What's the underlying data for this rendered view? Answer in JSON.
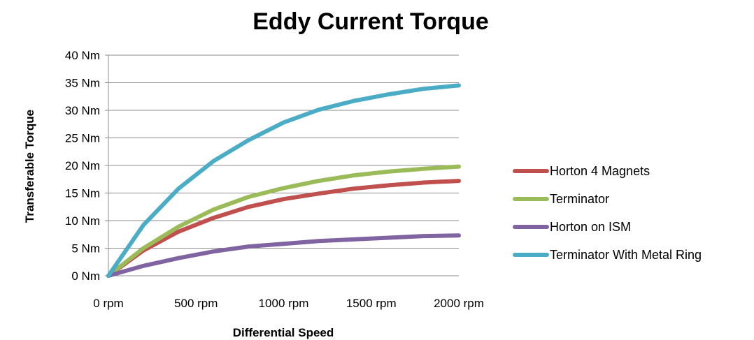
{
  "chart_data": {
    "type": "line",
    "title": "Eddy Current Torque",
    "xlabel": "Differential Speed",
    "ylabel": "Transferable Torque",
    "x_ticks": [
      "0 rpm",
      "500 rpm",
      "1000 rpm",
      "1500 rpm",
      "2000 rpm"
    ],
    "y_ticks": [
      "0 Nm",
      "5 Nm",
      "10 Nm",
      "15 Nm",
      "20 Nm",
      "25 Nm",
      "30 Nm",
      "35 Nm",
      "40 Nm"
    ],
    "xlim": [
      0,
      2000
    ],
    "ylim": [
      0,
      40
    ],
    "grid": "horizontal",
    "legend_position": "right",
    "x": [
      0,
      200,
      400,
      600,
      800,
      1000,
      1200,
      1400,
      1600,
      1800,
      2000
    ],
    "series": [
      {
        "name": "Horton 4 Magnets",
        "color": "#c0504d",
        "values": [
          0,
          4.6,
          8.0,
          10.5,
          12.5,
          13.9,
          14.9,
          15.8,
          16.4,
          16.9,
          17.2
        ]
      },
      {
        "name": "Terminator",
        "color": "#9bbb59",
        "values": [
          0,
          5.0,
          8.9,
          12.0,
          14.3,
          15.9,
          17.2,
          18.2,
          18.9,
          19.4,
          19.8
        ]
      },
      {
        "name": "Horton on ISM",
        "color": "#8064a2",
        "values": [
          0,
          1.8,
          3.2,
          4.4,
          5.3,
          5.8,
          6.3,
          6.6,
          6.9,
          7.2,
          7.3
        ]
      },
      {
        "name": "Terminator With Metal Ring",
        "color": "#4bacc6",
        "values": [
          0,
          9.2,
          15.8,
          20.8,
          24.6,
          27.8,
          30.1,
          31.7,
          32.9,
          33.9,
          34.5
        ]
      }
    ]
  }
}
